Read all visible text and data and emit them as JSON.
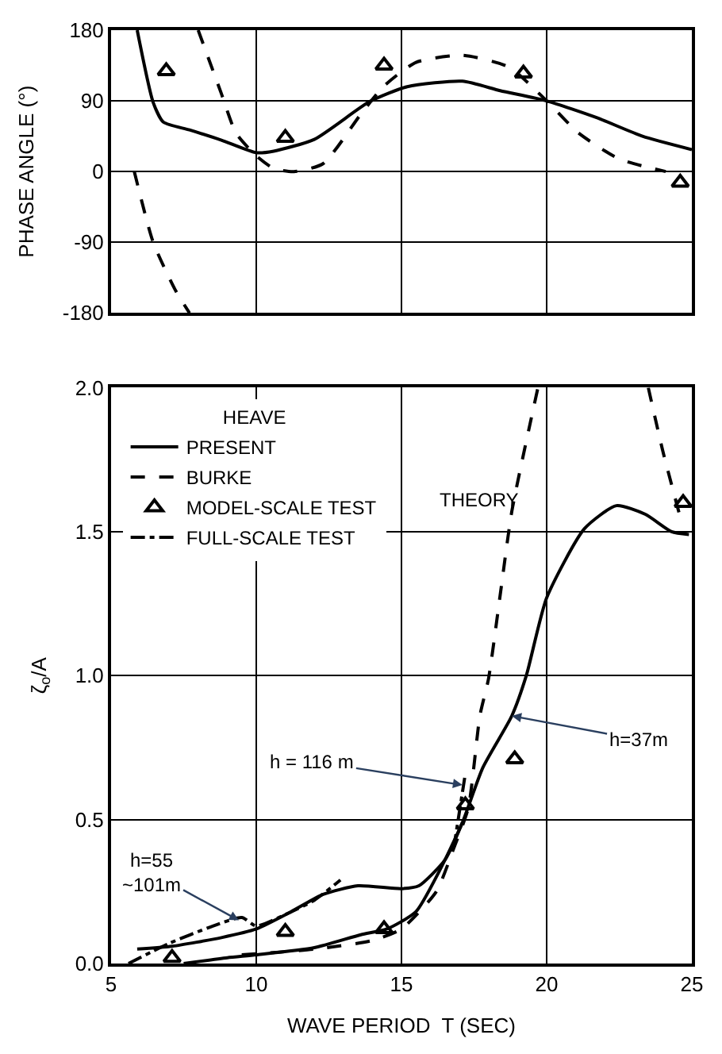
{
  "chart_data": [
    {
      "type": "line",
      "ylabel": "PHASE ANGLE (°)",
      "xlim": [
        5,
        25
      ],
      "xticks": [
        5,
        10,
        15,
        20,
        25
      ],
      "ylim": [
        -180,
        180
      ],
      "yticks": [
        -180,
        -90,
        0,
        90,
        180
      ],
      "grid": true,
      "tick_labels": "y",
      "legend": false,
      "series": [
        {
          "color": "#000000",
          "line_style": "solid",
          "x": [
            5.9,
            6.45,
            6.8,
            7.7,
            8.8,
            10,
            10.6,
            12,
            13.9,
            15.2,
            17.1,
            18.4,
            20,
            21.7,
            23.3,
            25
          ],
          "values": [
            180,
            88,
            63,
            53,
            40,
            24,
            26,
            41,
            89,
            108,
            115,
            103,
            90,
            69,
            45,
            28
          ]
        },
        {
          "color": "#000000",
          "line_style": "dashed",
          "x": [
            8.0,
            8.8,
            9.3,
            10,
            10.6,
            11.3,
            12.3,
            13.6,
            14.4,
            15.5,
            17.1,
            18.7,
            20,
            21.1,
            22.5,
            24.1
          ],
          "values": [
            180,
            99,
            49,
            20,
            4,
            0,
            10,
            73,
            109,
            139,
            148,
            133,
            90,
            49,
            16,
            0
          ]
        },
        {
          "color": "#000000",
          "line_style": "dashed",
          "x": [
            5.8,
            6.45,
            7.2,
            7.7
          ],
          "values": [
            0,
            -90,
            -150,
            -180
          ]
        },
        {
          "type": "scatter",
          "color": "#000000",
          "marker": "triangle",
          "x": [
            6.9,
            11.0,
            14.4,
            19.2,
            24.6
          ],
          "values": [
            128,
            43,
            135,
            125,
            -14
          ]
        }
      ]
    },
    {
      "type": "line",
      "xlabel": "WAVE PERIOD  T (SEC)",
      "ylabel": "ζ$_{o}$/A",
      "legend_title": "HEAVE",
      "legend": "top left",
      "xlim": [
        5,
        25
      ],
      "xticks": [
        5,
        10,
        15,
        20,
        25
      ],
      "ylim": [
        0,
        2
      ],
      "yticks": [
        {
          "value": 0,
          "label": "0.0"
        },
        0.5,
        {
          "value": 1,
          "label": "1.0"
        },
        1.5,
        {
          "value": 2,
          "label": "2.0"
        }
      ],
      "grid": true,
      "annotations": [
        "THEORY",
        {
          "text": "h = 116 m",
          "x": 17.1,
          "y": 0.62
        },
        {
          "text": "h=37m",
          "x": 18.8,
          "y": 0.86
        },
        {
          "text": "h=55\n~101m",
          "x": 9.4,
          "y": 0.15
        }
      ],
      "series": [
        {
          "name": "PRESENT",
          "color": "#000000",
          "line_style": "solid",
          "x": [
            5.9,
            7.1,
            8.8,
            10,
            11.2,
            12.3,
            13.5,
            15,
            15.6,
            16.5,
            17.1
          ],
          "values": [
            0.05,
            0.06,
            0.09,
            0.12,
            0.18,
            0.24,
            0.27,
            0.26,
            0.27,
            0.36,
            0.49
          ]
        },
        {
          "name": "BURKE",
          "color": "#000000",
          "line_style": "dashed",
          "x": [
            9.5,
            12,
            14,
            15,
            16.2,
            16.8,
            17.3,
            17.7,
            18.0,
            18.4,
            18.8,
            19.7
          ],
          "values": [
            0.03,
            0.05,
            0.08,
            0.12,
            0.25,
            0.4,
            0.54,
            0.86,
            0.99,
            1.28,
            1.57,
            2.0
          ]
        },
        {
          "name": "MODEL-SCALE TEST",
          "type": "scatter",
          "color": "#000000",
          "marker": "triangle",
          "x": [
            7.1,
            11.0,
            14.4,
            17.2,
            18.9,
            24.7
          ],
          "values": [
            0.02,
            0.11,
            0.12,
            0.55,
            0.71,
            1.6
          ]
        },
        {
          "name": "FULL-SCALE TEST",
          "color": "#000000",
          "line_style": "dashdot",
          "x": [
            5.6,
            7,
            8.5,
            9.5,
            10,
            11,
            12,
            12.9
          ],
          "values": [
            0,
            0.07,
            0.13,
            0.16,
            0.13,
            0.17,
            0.22,
            0.29
          ]
        },
        {
          "color": "#000000",
          "line_style": "solid",
          "x": [
            7.5,
            9,
            10,
            12,
            13.6,
            14.5,
            15.5,
            16.3,
            17.1,
            17.8,
            18.8,
            19.3,
            20,
            21.3,
            22.4,
            23.4,
            24.3,
            24.9
          ],
          "values": [
            0,
            0.02,
            0.03,
            0.055,
            0.1,
            0.12,
            0.18,
            0.32,
            0.49,
            0.68,
            0.86,
            1.0,
            1.27,
            1.51,
            1.59,
            1.56,
            1.5,
            1.49
          ]
        },
        {
          "color": "#000000",
          "line_style": "dashed",
          "x": [
            23.5,
            24.0,
            24.6
          ],
          "values": [
            2.0,
            1.78,
            1.55
          ]
        },
        {
          "color": "#000000",
          "line_style": "dashdot",
          "x": [
            16.8,
            17.2
          ],
          "values": [
            0.4,
            0.66
          ]
        }
      ]
    }
  ]
}
